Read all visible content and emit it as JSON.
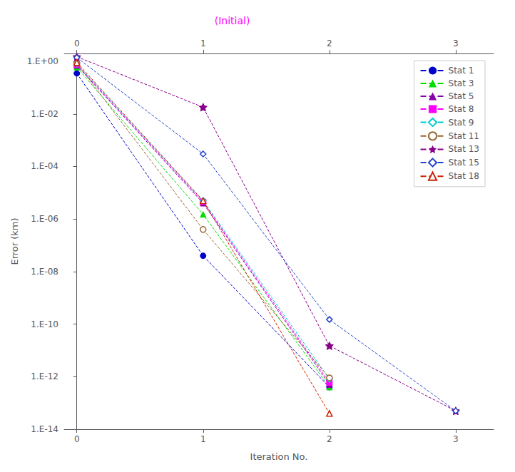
{
  "chart_data": {
    "type": "line",
    "log": "y",
    "xlabel": "Iteration No.",
    "ylabel": "Error (km)",
    "xlim": [
      -0.1,
      3.3
    ],
    "xticks": [
      0,
      1,
      2,
      3
    ],
    "x2lim": [
      -0.1,
      3.3
    ],
    "x2ticks": [
      0,
      1,
      2,
      3
    ],
    "ylim": [
      1e-14,
      2
    ],
    "yticks": [
      {
        "value": 1e-14,
        "label": "1.E-14"
      },
      {
        "value": 1e-12,
        "label": "1.E-12"
      },
      {
        "value": 1e-10,
        "label": "1.E-10"
      },
      {
        "value": 1e-08,
        "label": "1.E-08"
      },
      {
        "value": 1e-06,
        "label": "1.E-06"
      },
      {
        "value": 0.0001,
        "label": "1.E-04"
      },
      {
        "value": 0.01,
        "label": "1.E-02"
      },
      {
        "value": 1,
        "label": "1.E+00"
      }
    ],
    "grid": false,
    "legend": "upper right",
    "line_style": "dashed",
    "annotations": [
      {
        "text": "(Initial)",
        "color": "#FF00FF"
      }
    ],
    "series": [
      {
        "name": "Stat 1",
        "color": "#0000CC",
        "marker": "circle",
        "x": [
          0,
          1,
          2
        ],
        "values": [
          0.35,
          4e-08,
          4e-13
        ]
      },
      {
        "name": "Stat 3",
        "color": "#00DD00",
        "marker": "triangle",
        "x": [
          0,
          1,
          2
        ],
        "values": [
          0.6,
          1.5e-06,
          4e-13
        ]
      },
      {
        "name": "Stat 5",
        "color": "#8800AA",
        "marker": "triangle",
        "x": [
          0,
          1,
          2
        ],
        "values": [
          0.7,
          4e-06,
          5e-13
        ]
      },
      {
        "name": "Stat 8",
        "color": "#FF00FF",
        "marker": "square",
        "x": [
          0,
          1,
          2
        ],
        "values": [
          0.75,
          4.5e-06,
          6e-13
        ]
      },
      {
        "name": "Stat 9",
        "color": "#00CCCC",
        "marker": "diamond-open",
        "x": [
          0,
          1,
          2
        ],
        "values": [
          0.8,
          5e-06,
          8e-13
        ]
      },
      {
        "name": "Stat 11",
        "color": "#996633",
        "marker": "circle-open",
        "x": [
          0,
          1,
          2
        ],
        "values": [
          0.85,
          4e-07,
          9e-13
        ]
      },
      {
        "name": "Stat 13",
        "color": "#880088",
        "marker": "star",
        "x": [
          0,
          1,
          2,
          3
        ],
        "values": [
          1.5,
          0.018,
          1.5e-11,
          5e-14
        ]
      },
      {
        "name": "Stat 15",
        "color": "#2244CC",
        "marker": "diamond-open",
        "x": [
          0,
          1,
          2,
          3
        ],
        "values": [
          1.4,
          0.0003,
          1.5e-10,
          5e-14
        ]
      },
      {
        "name": "Stat 18",
        "color": "#CC2200",
        "marker": "triangle-open",
        "x": [
          0,
          1,
          2
        ],
        "values": [
          0.9,
          5e-06,
          4e-14
        ]
      }
    ]
  }
}
